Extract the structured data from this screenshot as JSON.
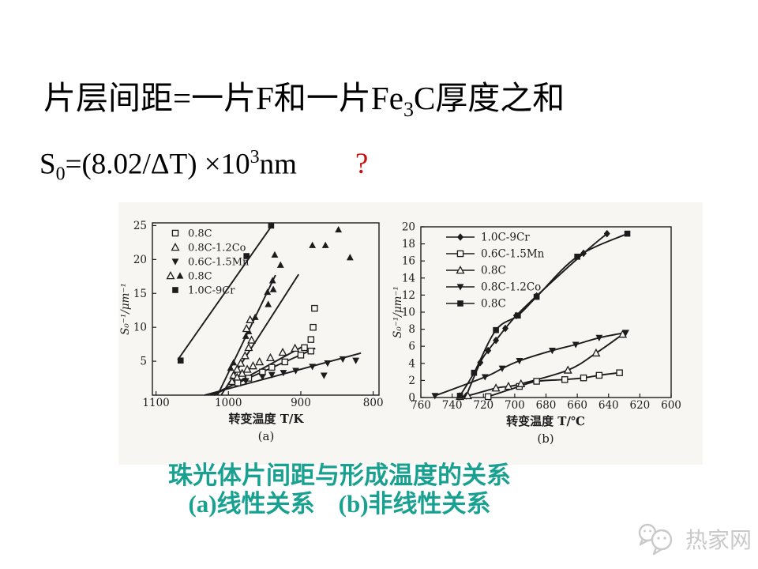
{
  "slide": {
    "title": {
      "pre": "片层间距=一片F和一片Fe",
      "sub": "3",
      "post": "C厚度之和"
    },
    "formula": {
      "base": "S",
      "base_sub": "0",
      "body": "=(8.02/ΔT) ×10",
      "sup": "3",
      "unit": "nm",
      "question_mark": "?"
    },
    "caption": {
      "line1": "珠光体片间距与形成温度的关系",
      "a_label": "(a)",
      "a_text": "线性关系",
      "b_label": "(b)",
      "b_text": "非线性关系"
    },
    "watermark": {
      "text": "热家网"
    }
  },
  "colors": {
    "ink": "#1c1c1c",
    "scan_bg": "#f7f6f3",
    "caption_teal": "#18a190",
    "question_red": "#cc1111",
    "watermark_gray": "#c9c9c9"
  },
  "chart_data": [
    {
      "type": "scatter",
      "panel": "a",
      "xlabel": "转变温度 T/K",
      "panel_label": "(a)",
      "ylabel": "S₀⁻¹/μm⁻¹",
      "x_axis_reversed": true,
      "x_ticks": [
        1100,
        1000,
        900,
        800
      ],
      "y_ticks": [
        5,
        10,
        15,
        20,
        25
      ],
      "xlim": [
        1105,
        792
      ],
      "ylim": [
        0,
        25.4
      ],
      "legend": [
        {
          "marker": "open-square",
          "label": "0.8C"
        },
        {
          "marker": "open-triangle",
          "label": "0.8C-1.2Co"
        },
        {
          "marker": "filled-down-triangle",
          "label": "0.6C-1.5Mn"
        },
        {
          "marker": "open-triangle+filled-triangle",
          "label": "0.8C"
        },
        {
          "marker": "filled-square",
          "label": "1.0C-9Cr"
        }
      ],
      "series": [
        {
          "name": "1.0C-9Cr",
          "marker": "filled-square",
          "fit_line": [
            [
              1070,
              5.2
            ],
            [
              938,
              25.3
            ]
          ],
          "points": [
            [
              1066,
              5.1
            ],
            [
              975,
              20.5
            ],
            [
              941,
              25.0
            ]
          ]
        },
        {
          "name": "0.8C",
          "marker": "filled-triangle",
          "fit_line": [
            [
              1015,
              0
            ],
            [
              935,
              17.7
            ]
          ],
          "points": [
            [
              997,
              4.0
            ],
            [
              993,
              4.8
            ],
            [
              976,
              8.7
            ],
            [
              972,
              9.4
            ],
            [
              963,
              11.5
            ],
            [
              946,
              15.2
            ],
            [
              939,
              16.9
            ]
          ]
        },
        {
          "name": "0.8C",
          "marker": "open-triangle",
          "fit_line": [
            [
              1010,
              0
            ],
            [
              903,
              17.8
            ]
          ],
          "points": [
            [
              993,
              2.9
            ],
            [
              988,
              3.8
            ],
            [
              983,
              4.7
            ],
            [
              977,
              5.8
            ],
            [
              972,
              7.0
            ],
            [
              968,
              8.1
            ],
            [
              975,
              9.8
            ],
            [
              970,
              11.1
            ]
          ]
        },
        {
          "name": "0.8C",
          "marker": "filled-triangle",
          "fit_line": null,
          "points": [
            [
              945,
              13.4
            ],
            [
              938,
              15.6
            ],
            [
              928,
              19.2
            ],
            [
              936,
              20.7
            ],
            [
              884,
              22.1
            ],
            [
              866,
              22.1
            ],
            [
              848,
              24.4
            ],
            [
              832,
              20.3
            ]
          ]
        },
        {
          "name": "0.8C-1.2Co",
          "marker": "open-triangle",
          "fit_line": [
            [
              1020,
              0
            ],
            [
              895,
              7.3
            ]
          ],
          "points": [
            [
              995,
              2.0
            ],
            [
              988,
              2.6
            ],
            [
              981,
              3.2
            ],
            [
              974,
              3.8
            ],
            [
              966,
              4.3
            ],
            [
              957,
              4.9
            ],
            [
              942,
              5.5
            ],
            [
              925,
              6.3
            ],
            [
              908,
              6.9
            ]
          ]
        },
        {
          "name": "0.8C",
          "marker": "open-square",
          "fit_line": [
            [
              1025,
              0
            ],
            [
              880,
              6.9
            ]
          ],
          "points": [
            [
              987,
              1.8
            ],
            [
              972,
              2.5
            ],
            [
              953,
              3.4
            ],
            [
              940,
              4.1
            ],
            [
              922,
              4.9
            ],
            [
              900,
              5.9
            ],
            [
              886,
              6.5
            ],
            [
              881,
              12.8
            ],
            [
              883,
              10.0
            ],
            [
              886,
              8.2
            ],
            [
              895,
              7.0
            ]
          ]
        },
        {
          "name": "0.6C-1.5Mn",
          "marker": "filled-down-triangle",
          "fit_line": [
            [
              1033,
              0
            ],
            [
              817,
              6.2
            ]
          ],
          "points": [
            [
              976,
              2.1
            ],
            [
              953,
              2.7
            ],
            [
              940,
              3.0
            ],
            [
              924,
              3.3
            ],
            [
              907,
              3.6
            ],
            [
              884,
              4.2
            ],
            [
              868,
              2.9
            ],
            [
              863,
              4.7
            ],
            [
              842,
              5.3
            ],
            [
              824,
              5.1
            ]
          ]
        }
      ]
    },
    {
      "type": "scatter",
      "panel": "b",
      "xlabel": "转变温度 T/℃",
      "panel_label": "(b)",
      "ylabel": "S₀⁻¹/μm⁻¹",
      "x_axis_reversed": true,
      "x_ticks": [
        760,
        740,
        720,
        700,
        680,
        660,
        640,
        620,
        600
      ],
      "y_ticks": [
        0,
        2,
        4,
        6,
        8,
        10,
        12,
        14,
        16,
        18,
        20
      ],
      "xlim": [
        760,
        600
      ],
      "ylim": [
        0,
        20
      ],
      "legend": [
        {
          "marker": "filled-diamond",
          "label": "1.0C-9Cr"
        },
        {
          "marker": "open-square",
          "label": "0.6C-1.5Mn"
        },
        {
          "marker": "open-triangle",
          "label": "0.8C"
        },
        {
          "marker": "filled-down-triangle",
          "label": "0.8C-1.2Co"
        },
        {
          "marker": "filled-square",
          "label": "0.8C"
        }
      ],
      "legend_line_through": true,
      "series": [
        {
          "name": "1.0C-9Cr",
          "marker": "filled-diamond",
          "curve": true,
          "points": [
            [
              731,
              0.2
            ],
            [
              722,
              4.1
            ],
            [
              717,
              5.5
            ],
            [
              712,
              6.7
            ],
            [
              706,
              8.1
            ],
            [
              699,
              9.6
            ],
            [
              686,
              11.9
            ],
            [
              656,
              16.9
            ],
            [
              641,
              19.2
            ]
          ]
        },
        {
          "name": "0.6C-1.5Mn",
          "marker": "open-square",
          "curve": true,
          "points": [
            [
              717,
              0.1
            ],
            [
              697,
              1.3
            ],
            [
              686,
              1.9
            ],
            [
              668,
              2.1
            ],
            [
              656,
              2.3
            ],
            [
              646,
              2.6
            ],
            [
              633,
              2.9
            ]
          ]
        },
        {
          "name": "0.8C",
          "marker": "open-triangle",
          "curve": true,
          "points": [
            [
              735,
              0.1
            ],
            [
              730,
              0.2
            ],
            [
              712,
              1.1
            ],
            [
              704,
              1.3
            ],
            [
              696,
              1.6
            ],
            [
              666,
              3.2
            ],
            [
              648,
              5.2
            ],
            [
              631,
              7.4
            ]
          ]
        },
        {
          "name": "0.8C-1.2Co",
          "marker": "filled-down-triangle",
          "curve": true,
          "points": [
            [
              751,
              0.2
            ],
            [
              719,
              2.4
            ],
            [
              708,
              3.4
            ],
            [
              697,
              4.3
            ],
            [
              676,
              5.5
            ],
            [
              661,
              6.2
            ],
            [
              646,
              7.0
            ],
            [
              629,
              7.6
            ]
          ]
        },
        {
          "name": "0.8C",
          "marker": "filled-square",
          "curve": true,
          "points": [
            [
              735,
              0.2
            ],
            [
              726,
              2.9
            ],
            [
              712,
              7.9
            ],
            [
              698,
              9.6
            ],
            [
              686,
              11.8
            ],
            [
              660,
              16.5
            ],
            [
              628,
              19.2
            ]
          ]
        }
      ]
    }
  ]
}
